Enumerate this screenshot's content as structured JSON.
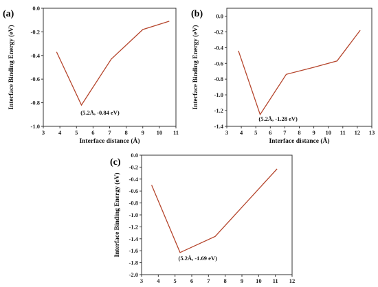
{
  "chart_data": [
    {
      "type": "line",
      "panel_label": "(a)",
      "xlabel": "Interface distance (Å)",
      "ylabel": "Interface Binding Energy (eV)",
      "xlim": [
        3,
        11
      ],
      "ylim": [
        -1.0,
        0.0
      ],
      "xticks": [
        3,
        4,
        5,
        6,
        7,
        8,
        9,
        10,
        11
      ],
      "yticks": [
        0.0,
        -0.2,
        -0.4,
        -0.6,
        -0.8,
        -1.0
      ],
      "ytick_labels": [
        "0.0",
        "-0.2",
        "-0.4",
        "-0.6",
        "-0.8",
        "-1.0"
      ],
      "series": [
        {
          "x": [
            3.8,
            5.3,
            7.1,
            9.0,
            10.6
          ],
          "y": [
            -0.37,
            -0.82,
            -0.43,
            -0.18,
            -0.11
          ]
        }
      ],
      "annotation": "(5.2Å, -0.84 eV)",
      "line_color": "#b5452c"
    },
    {
      "type": "line",
      "panel_label": "(b)",
      "xlabel": "Interface distance (Å)",
      "ylabel": "Interface Binding Energy (eV)",
      "xlim": [
        3,
        13
      ],
      "ylim": [
        -1.4,
        0.1
      ],
      "xticks": [
        3,
        4,
        5,
        6,
        7,
        8,
        9,
        10,
        11,
        12,
        13
      ],
      "yticks": [
        0.0,
        -0.2,
        -0.4,
        -0.6,
        -0.8,
        -1.0,
        -1.2,
        -1.4
      ],
      "ytick_labels": [
        "0.0",
        "-0.2",
        "-0.4",
        "-0.6",
        "-0.8",
        "-1.0",
        "-1.2",
        "-1.4"
      ],
      "series": [
        {
          "x": [
            3.8,
            5.3,
            7.1,
            9.0,
            10.6,
            12.2
          ],
          "y": [
            -0.44,
            -1.25,
            -0.74,
            -0.65,
            -0.57,
            -0.18
          ]
        }
      ],
      "annotation": "(5.2Å, -1.28 eV)",
      "line_color": "#b5452c"
    },
    {
      "type": "line",
      "panel_label": "(c)",
      "xlabel": "",
      "ylabel": "Interface Binding Energy (eV)",
      "xlim": [
        3,
        12
      ],
      "ylim": [
        -2.0,
        0.0
      ],
      "xticks": [
        3,
        4,
        5,
        6,
        7,
        8,
        9,
        10,
        11,
        12
      ],
      "yticks": [
        0.0,
        -0.2,
        -0.4,
        -0.6,
        -0.8,
        -1.0,
        -1.2,
        -1.4,
        -1.6,
        -1.8,
        -2.0
      ],
      "ytick_labels": [
        "0.0",
        "-0.2",
        "-0.4",
        "-0.6",
        "-0.8",
        "-1.0",
        "-1.2",
        "-1.4",
        "-1.6",
        "-1.8",
        "-2.0"
      ],
      "series": [
        {
          "x": [
            3.6,
            5.3,
            7.4,
            11.1
          ],
          "y": [
            -0.5,
            -1.63,
            -1.36,
            -0.23
          ]
        }
      ],
      "annotation": "(5.2Å, -1.69 eV)",
      "line_color": "#b5452c"
    }
  ]
}
